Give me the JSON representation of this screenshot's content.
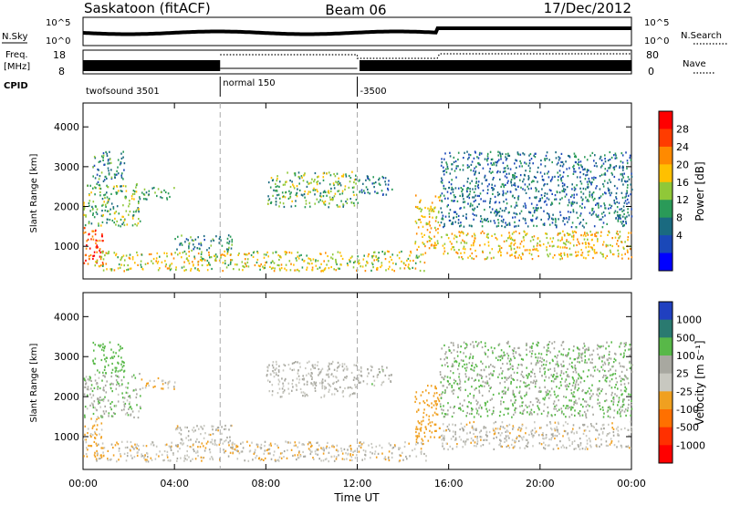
{
  "header": {
    "station": "Saskatoon (fitACF)",
    "beam": "Beam 06",
    "date": "17/Dec/2012"
  },
  "noise_panel": {
    "left_label": "N.Sky",
    "right_label": "N.Search",
    "left_ticks": [
      "10^5",
      "10^0"
    ],
    "right_ticks": [
      "10^5",
      "10^0"
    ]
  },
  "freq_panel": {
    "left_label_1": "Freq.",
    "left_label_2": "[MHz]",
    "right_label": "Nave",
    "left_ticks": [
      "18",
      "8"
    ],
    "right_ticks": [
      "80",
      "0"
    ]
  },
  "cpid": {
    "label": "CPID",
    "segments": [
      {
        "name": "twofsound 3501",
        "start": 0,
        "end": 6
      },
      {
        "name": "normal 150",
        "start": 6,
        "end": 12
      },
      {
        "name": "-3500",
        "start": 12,
        "end": 24
      }
    ]
  },
  "power_panel": {
    "ylabel": "Slant Range [km]",
    "yticks": [
      "4000",
      "3000",
      "2000",
      "1000"
    ],
    "colorbar_label": "Power [dB]",
    "colorbar_ticks": [
      "28",
      "24",
      "20",
      "16",
      "12",
      "8",
      "4"
    ],
    "colors": [
      "#ff0000",
      "#ff3c00",
      "#ff8a00",
      "#ffc000",
      "#90c838",
      "#2a9a58",
      "#1a6a80",
      "#1a48b8",
      "#0000ff"
    ]
  },
  "velocity_panel": {
    "ylabel": "Slant Range [km]",
    "yticks": [
      "4000",
      "3000",
      "2000",
      "1000"
    ],
    "colorbar_label": "Velocity [m s⁻¹]",
    "colorbar_ticks": [
      "1000",
      "500",
      "100",
      "25",
      "-25",
      "-100",
      "-500",
      "-1000"
    ],
    "colors": [
      "#2040c0",
      "#2a7a70",
      "#58b848",
      "#a8a8a0",
      "#c8c8c0",
      "#f0a020",
      "#ff7000",
      "#ff3000",
      "#ff0000"
    ]
  },
  "xaxis": {
    "label": "Time UT",
    "ticks": [
      "00:00",
      "04:00",
      "08:00",
      "12:00",
      "16:00",
      "20:00",
      "00:00"
    ]
  },
  "chart_data": {
    "type": "heatmap",
    "title": "Saskatoon (fitACF)",
    "xlabel": "Time UT",
    "ylabel": "Slant Range [km]",
    "x_range_hours": [
      0,
      24
    ],
    "y_range_km": [
      180,
      4600
    ],
    "power_range_db": [
      0,
      32
    ],
    "velocity_range_ms": [
      -1200,
      1200
    ],
    "grid": false,
    "echo_regions": [
      {
        "t0": 0.0,
        "t1": 0.9,
        "r0": 500,
        "r1": 1500,
        "power": 28,
        "velocity": -80
      },
      {
        "t0": 0.0,
        "t1": 2.5,
        "r0": 1500,
        "r1": 2600,
        "power": 14,
        "velocity": 40
      },
      {
        "t0": 0.4,
        "t1": 1.8,
        "r0": 2600,
        "r1": 3400,
        "power": 10,
        "velocity": 150
      },
      {
        "t0": 2.5,
        "t1": 4.0,
        "r0": 2200,
        "r1": 2500,
        "power": 12,
        "velocity": -40
      },
      {
        "t0": 0.5,
        "t1": 15.0,
        "r0": 400,
        "r1": 900,
        "power": 18,
        "velocity": -30
      },
      {
        "t0": 4.0,
        "t1": 6.5,
        "r0": 900,
        "r1": 1300,
        "power": 10,
        "velocity": -10
      },
      {
        "t0": 8.0,
        "t1": 12.0,
        "r0": 2000,
        "r1": 2900,
        "power": 14,
        "velocity": 0
      },
      {
        "t0": 12.0,
        "t1": 13.5,
        "r0": 2300,
        "r1": 2800,
        "power": 8,
        "velocity": 10
      },
      {
        "t0": 14.5,
        "t1": 15.6,
        "r0": 900,
        "r1": 2300,
        "power": 20,
        "velocity": -150
      },
      {
        "t0": 15.6,
        "t1": 24.0,
        "r0": 700,
        "r1": 1400,
        "power": 20,
        "velocity": -15
      },
      {
        "t0": 15.6,
        "t1": 24.0,
        "r0": 1500,
        "r1": 3400,
        "power": 8,
        "velocity": 60
      }
    ]
  }
}
